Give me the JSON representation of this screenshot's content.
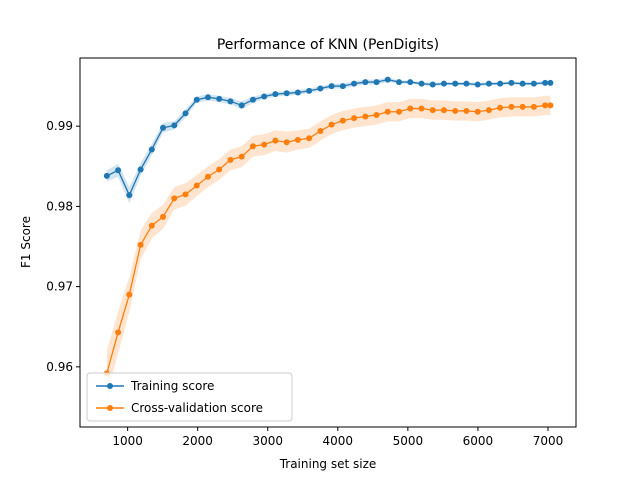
{
  "chart_data": {
    "type": "line",
    "title": "Performance of KNN (PenDigits)",
    "xlabel": "Training set size",
    "ylabel": "F1 Score",
    "xlim": [
      320,
      7400
    ],
    "ylim": [
      0.9525,
      0.9985
    ],
    "xticks": [
      1000,
      2000,
      3000,
      4000,
      5000,
      6000,
      7000
    ],
    "xtick_labels": [
      "1000",
      "2000",
      "3000",
      "4000",
      "5000",
      "6000",
      "7000"
    ],
    "yticks": [
      0.96,
      0.97,
      0.98,
      0.99
    ],
    "ytick_labels": [
      "0.96",
      "0.97",
      "0.98",
      "0.99"
    ],
    "grid": false,
    "legend_position": "lower-left",
    "series": [
      {
        "name": "Training score",
        "color": "#1f77b4",
        "x": [
          703,
          864,
          1024,
          1185,
          1345,
          1505,
          1666,
          1826,
          1987,
          2147,
          2307,
          2468,
          2628,
          2789,
          2949,
          3109,
          3270,
          3430,
          3591,
          3751,
          3911,
          4072,
          4232,
          4393,
          4553,
          4713,
          4874,
          5034,
          5195,
          5355,
          5515,
          5676,
          5836,
          5997,
          6157,
          6317,
          6478,
          6638,
          6799,
          6959,
          7035
        ],
        "y": [
          0.9838,
          0.9845,
          0.9814,
          0.9846,
          0.9871,
          0.9898,
          0.9901,
          0.9916,
          0.9933,
          0.9936,
          0.9934,
          0.9931,
          0.9926,
          0.9933,
          0.9937,
          0.994,
          0.9941,
          0.9942,
          0.9944,
          0.9947,
          0.995,
          0.995,
          0.9953,
          0.9955,
          0.9955,
          0.9958,
          0.9955,
          0.9955,
          0.9953,
          0.9952,
          0.9953,
          0.9953,
          0.9953,
          0.9952,
          0.9953,
          0.9953,
          0.9954,
          0.9953,
          0.9953,
          0.9954,
          0.9954
        ],
        "y_std": [
          0.0007,
          0.0008,
          0.001,
          0.0008,
          0.0007,
          0.0006,
          0.0005,
          0.0005,
          0.0004,
          0.0004,
          0.0004,
          0.0004,
          0.0005,
          0.0004,
          0.0003,
          0.0003,
          0.0003,
          0.0003,
          0.0003,
          0.0003,
          0.0003,
          0.0003,
          0.0003,
          0.0003,
          0.0003,
          0.0003,
          0.0002,
          0.0002,
          0.0002,
          0.0002,
          0.0002,
          0.0002,
          0.0002,
          0.0002,
          0.0002,
          0.0002,
          0.0002,
          0.0002,
          0.0002,
          0.0002,
          0.0002
        ]
      },
      {
        "name": "Cross-validation score",
        "color": "#ff7f0e",
        "x": [
          703,
          864,
          1024,
          1185,
          1345,
          1505,
          1666,
          1826,
          1987,
          2147,
          2307,
          2468,
          2628,
          2789,
          2949,
          3109,
          3270,
          3430,
          3591,
          3751,
          3911,
          4072,
          4232,
          4393,
          4553,
          4713,
          4874,
          5034,
          5195,
          5355,
          5515,
          5676,
          5836,
          5997,
          6157,
          6317,
          6478,
          6638,
          6799,
          6959,
          7035
        ],
        "y": [
          0.9592,
          0.9643,
          0.969,
          0.9752,
          0.9776,
          0.9787,
          0.981,
          0.9815,
          0.9826,
          0.9837,
          0.9846,
          0.9858,
          0.9862,
          0.9875,
          0.9877,
          0.9882,
          0.988,
          0.9883,
          0.9885,
          0.9894,
          0.9902,
          0.9907,
          0.991,
          0.9912,
          0.9914,
          0.9918,
          0.9918,
          0.9922,
          0.9922,
          0.992,
          0.992,
          0.9919,
          0.9919,
          0.9918,
          0.992,
          0.9923,
          0.9924,
          0.9924,
          0.9924,
          0.9926,
          0.9926
        ],
        "y_std": [
          0.0028,
          0.0026,
          0.0022,
          0.0018,
          0.0016,
          0.0015,
          0.0014,
          0.0014,
          0.0013,
          0.0013,
          0.0013,
          0.0013,
          0.0013,
          0.0013,
          0.0013,
          0.0013,
          0.0013,
          0.0012,
          0.0012,
          0.0012,
          0.0012,
          0.0012,
          0.0012,
          0.0012,
          0.0012,
          0.0012,
          0.0012,
          0.0012,
          0.0012,
          0.0012,
          0.0012,
          0.0012,
          0.0012,
          0.0012,
          0.0012,
          0.0012,
          0.0012,
          0.0012,
          0.0012,
          0.0012,
          0.0012
        ]
      }
    ]
  }
}
